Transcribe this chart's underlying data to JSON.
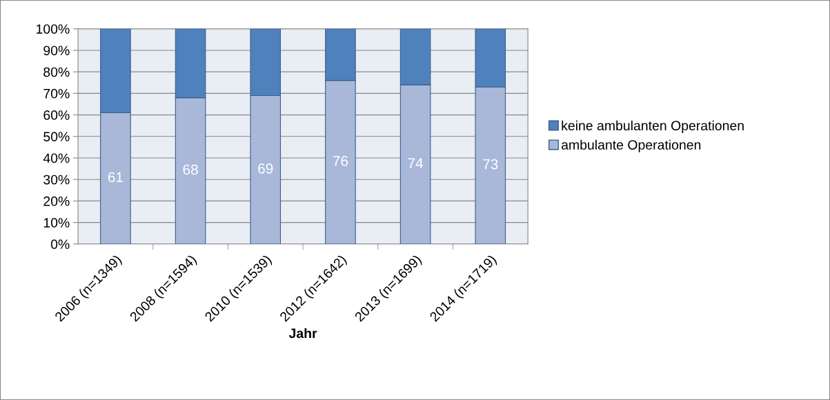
{
  "chart_data": {
    "type": "bar",
    "stacked": true,
    "xlabel": "Jahr",
    "categories": [
      "2006 (n=1349)",
      "2008 (n=1594)",
      "2010 (n=1539)",
      "2012 (n=1642)",
      "2013 (n=1699)",
      "2014 (n=1719)"
    ],
    "series": [
      {
        "name": "ambulante Operationen",
        "color": "#a9b8d9",
        "values": [
          61,
          68,
          69,
          76,
          74,
          73
        ],
        "value_labels": [
          "61",
          "68",
          "69",
          "76",
          "74",
          "73"
        ]
      },
      {
        "name": "keine ambulanten Operationen",
        "color": "#4f81bd",
        "values": [
          39,
          32,
          31,
          24,
          26,
          27
        ]
      }
    ],
    "ylim": [
      0,
      100
    ],
    "yticks": [
      {
        "value": 0,
        "label": "0%"
      },
      {
        "value": 10,
        "label": "10%"
      },
      {
        "value": 20,
        "label": "20%"
      },
      {
        "value": 30,
        "label": "30%"
      },
      {
        "value": 40,
        "label": "40%"
      },
      {
        "value": 50,
        "label": "50%"
      },
      {
        "value": 60,
        "label": "60%"
      },
      {
        "value": 70,
        "label": "70%"
      },
      {
        "value": 80,
        "label": "80%"
      },
      {
        "value": 90,
        "label": "90%"
      },
      {
        "value": 100,
        "label": "100%"
      }
    ],
    "grid": "y",
    "legend": "right"
  }
}
